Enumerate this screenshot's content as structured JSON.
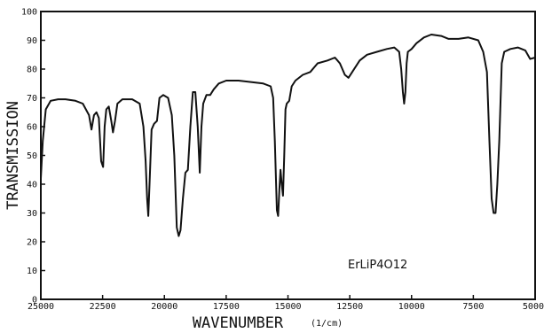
{
  "chart_data": {
    "type": "line",
    "title": "",
    "xlabel": "WAVENUMBER",
    "xunit": "(1/cm)",
    "ylabel": "TRANSMISSION",
    "xlim": [
      25000,
      5000
    ],
    "ylim": [
      0,
      100
    ],
    "x_ticks": [
      25000,
      22500,
      20000,
      17500,
      15000,
      12500,
      10000,
      7500,
      5000
    ],
    "x_tick_labels": [
      "25000",
      "22500",
      "20000",
      "17500",
      "15000",
      "12500",
      "10000",
      "7500",
      "5000"
    ],
    "y_ticks": [
      0,
      10,
      20,
      30,
      40,
      50,
      60,
      70,
      80,
      90,
      100
    ],
    "y_tick_labels": [
      "0",
      "10",
      "20",
      "30",
      "40",
      "50",
      "60",
      "70",
      "80",
      "90",
      "100"
    ],
    "grid": false,
    "annotation": "ErLiP4O12",
    "series": [
      {
        "color": "#111111",
        "points": [
          [
            25000,
            42
          ],
          [
            24920,
            55
          ],
          [
            24800,
            66
          ],
          [
            24600,
            69
          ],
          [
            24300,
            69.5
          ],
          [
            24000,
            69.5
          ],
          [
            23600,
            69
          ],
          [
            23300,
            68
          ],
          [
            23050,
            64
          ],
          [
            22950,
            59
          ],
          [
            22850,
            64
          ],
          [
            22750,
            65
          ],
          [
            22650,
            63
          ],
          [
            22560,
            48
          ],
          [
            22480,
            46
          ],
          [
            22420,
            60
          ],
          [
            22350,
            66
          ],
          [
            22250,
            67
          ],
          [
            22150,
            62
          ],
          [
            22080,
            58
          ],
          [
            22000,
            62
          ],
          [
            21900,
            68
          ],
          [
            21700,
            69.5
          ],
          [
            21300,
            69.5
          ],
          [
            21000,
            68
          ],
          [
            20850,
            60
          ],
          [
            20760,
            48
          ],
          [
            20700,
            35
          ],
          [
            20650,
            29
          ],
          [
            20600,
            40
          ],
          [
            20520,
            59
          ],
          [
            20420,
            61
          ],
          [
            20300,
            62
          ],
          [
            20200,
            70
          ],
          [
            20050,
            71
          ],
          [
            19850,
            70
          ],
          [
            19700,
            64
          ],
          [
            19600,
            50
          ],
          [
            19500,
            25
          ],
          [
            19420,
            22
          ],
          [
            19350,
            24
          ],
          [
            19250,
            35
          ],
          [
            19150,
            44
          ],
          [
            19050,
            45
          ],
          [
            18950,
            60
          ],
          [
            18850,
            72
          ],
          [
            18750,
            72
          ],
          [
            18650,
            60
          ],
          [
            18570,
            44
          ],
          [
            18500,
            60
          ],
          [
            18430,
            68
          ],
          [
            18300,
            71
          ],
          [
            18150,
            71
          ],
          [
            18000,
            73
          ],
          [
            17800,
            75
          ],
          [
            17500,
            76
          ],
          [
            17000,
            76
          ],
          [
            16500,
            75.5
          ],
          [
            16000,
            75
          ],
          [
            15700,
            74
          ],
          [
            15600,
            70
          ],
          [
            15530,
            55
          ],
          [
            15450,
            31
          ],
          [
            15400,
            29
          ],
          [
            15350,
            38
          ],
          [
            15300,
            45
          ],
          [
            15250,
            40
          ],
          [
            15200,
            36
          ],
          [
            15150,
            50
          ],
          [
            15100,
            66
          ],
          [
            15050,
            68
          ],
          [
            14950,
            69
          ],
          [
            14850,
            74
          ],
          [
            14700,
            76
          ],
          [
            14400,
            78
          ],
          [
            14100,
            79
          ],
          [
            13800,
            82
          ],
          [
            13400,
            83
          ],
          [
            13100,
            84
          ],
          [
            12900,
            82
          ],
          [
            12700,
            78
          ],
          [
            12550,
            77
          ],
          [
            12400,
            79
          ],
          [
            12100,
            83
          ],
          [
            11800,
            85
          ],
          [
            11400,
            86
          ],
          [
            11000,
            87
          ],
          [
            10700,
            87.5
          ],
          [
            10500,
            86
          ],
          [
            10420,
            80
          ],
          [
            10350,
            72
          ],
          [
            10300,
            68
          ],
          [
            10250,
            72
          ],
          [
            10200,
            82
          ],
          [
            10150,
            86
          ],
          [
            10000,
            87
          ],
          [
            9800,
            89
          ],
          [
            9500,
            91
          ],
          [
            9200,
            92
          ],
          [
            8800,
            91.5
          ],
          [
            8500,
            90.5
          ],
          [
            8100,
            90.5
          ],
          [
            7700,
            91
          ],
          [
            7300,
            90
          ],
          [
            7100,
            86
          ],
          [
            6950,
            79
          ],
          [
            6850,
            55
          ],
          [
            6760,
            35
          ],
          [
            6680,
            30
          ],
          [
            6600,
            30
          ],
          [
            6530,
            40
          ],
          [
            6450,
            55
          ],
          [
            6350,
            82
          ],
          [
            6250,
            86
          ],
          [
            6000,
            87
          ],
          [
            5700,
            87.5
          ],
          [
            5400,
            86.5
          ],
          [
            5200,
            83.5
          ],
          [
            5000,
            84
          ]
        ]
      }
    ]
  }
}
